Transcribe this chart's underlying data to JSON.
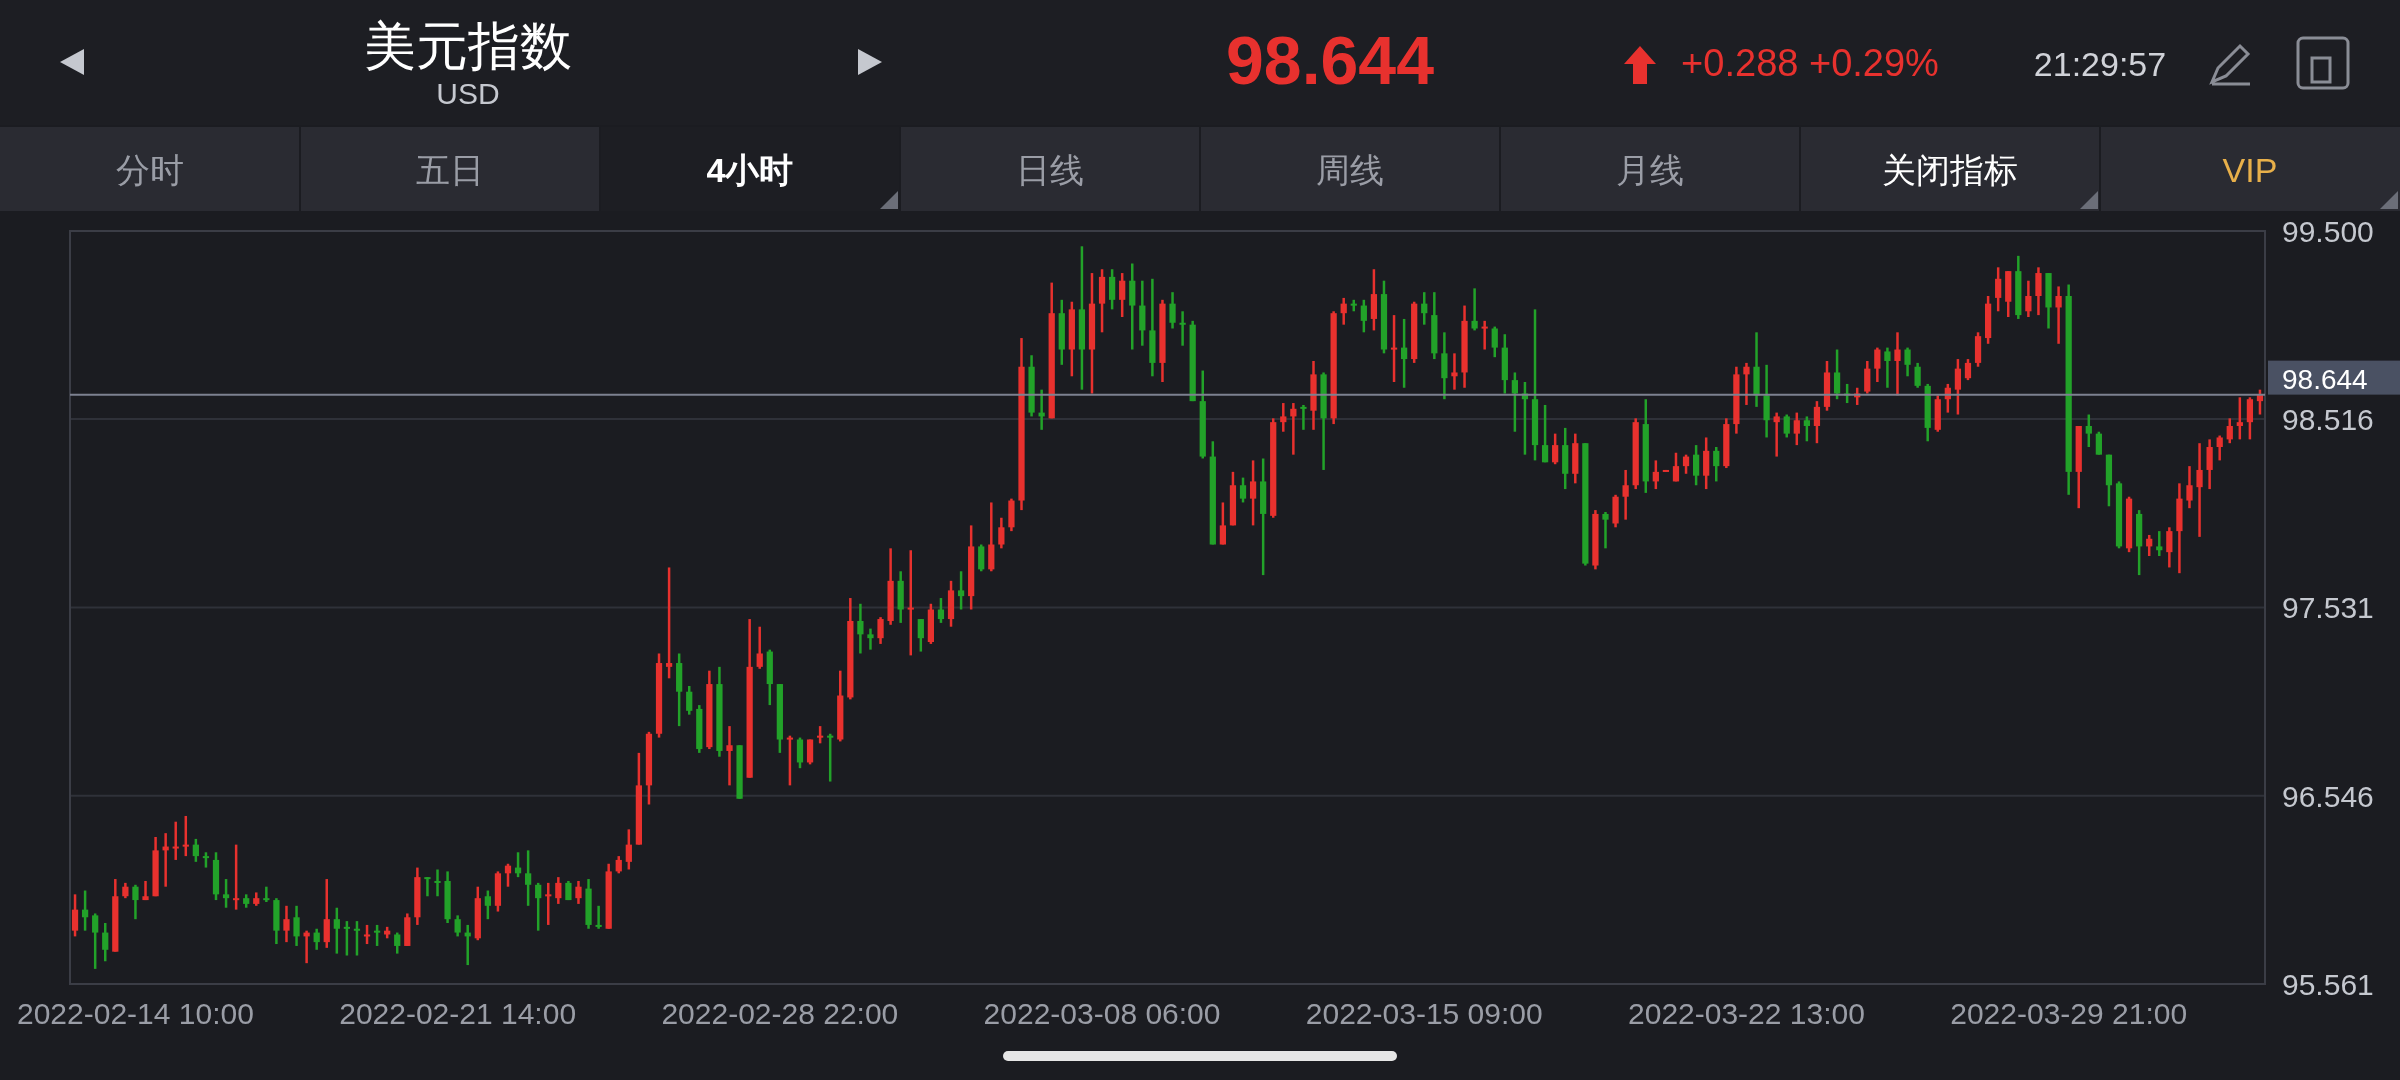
{
  "chart_data": {
    "type": "candlestick",
    "title": "美元指数",
    "subtitle": "USD",
    "annotations": [
      "98.644",
      "+0.288 +0.29%",
      "21:29:57",
      "分时",
      "五日",
      "4小时",
      "日线",
      "周线",
      "月线",
      "关闭指标",
      "VIP"
    ],
    "categories": [
      null,
      null,
      null,
      null,
      null,
      null,
      "2022-02-14 10:00",
      null,
      null,
      null,
      null,
      null,
      null,
      null,
      null,
      null,
      null,
      null,
      null,
      null,
      null,
      null,
      null,
      null,
      null,
      null,
      null,
      null,
      null,
      null,
      null,
      null,
      null,
      null,
      null,
      null,
      null,
      null,
      "2022-02-21 14:00",
      null,
      null,
      null,
      null,
      null,
      null,
      null,
      null,
      null,
      null,
      null,
      null,
      null,
      null,
      null,
      null,
      null,
      null,
      null,
      null,
      null,
      null,
      null,
      null,
      null,
      null,
      null,
      null,
      null,
      null,
      null,
      "2022-02-28 22:00",
      null,
      null,
      null,
      null,
      null,
      null,
      null,
      null,
      null,
      null,
      null,
      null,
      null,
      null,
      null,
      null,
      null,
      null,
      null,
      null,
      null,
      null,
      null,
      null,
      null,
      null,
      null,
      null,
      null,
      null,
      null,
      "2022-03-08 06:00",
      null,
      null,
      null,
      null,
      null,
      null,
      null,
      null,
      null,
      null,
      null,
      null,
      null,
      null,
      null,
      null,
      null,
      null,
      null,
      null,
      null,
      null,
      null,
      null,
      null,
      null,
      null,
      null,
      null,
      null,
      null,
      "2022-03-15 09:00",
      null,
      null,
      null,
      null,
      null,
      null,
      null,
      null,
      null,
      null,
      null,
      null,
      null,
      null,
      null,
      null,
      null,
      null,
      null,
      null,
      null,
      null,
      null,
      null,
      null,
      null,
      null,
      null,
      null,
      null,
      null,
      "2022-03-22 13:00",
      null,
      null,
      null,
      null,
      null,
      null,
      null,
      null,
      null,
      null,
      null,
      null,
      null,
      null,
      null,
      null,
      null,
      null,
      null,
      null,
      null,
      null,
      null,
      null,
      null,
      null,
      null,
      null,
      null,
      null,
      null,
      "2022-03-29 21:00",
      null,
      null,
      null,
      null,
      null,
      null,
      null,
      null,
      null,
      null,
      null,
      null,
      null,
      null,
      null,
      null,
      null,
      null,
      null
    ],
    "ohlc": [
      [
        95.84,
        96.03,
        95.81,
        95.95
      ],
      [
        95.95,
        96.05,
        95.84,
        95.91
      ],
      [
        95.92,
        95.93,
        95.64,
        95.83
      ],
      [
        95.83,
        95.88,
        95.68,
        95.74
      ],
      [
        95.73,
        96.11,
        95.73,
        96.02
      ],
      [
        96.02,
        96.09,
        96.01,
        96.07
      ],
      [
        96.07,
        96.08,
        95.9,
        96.0
      ],
      [
        96.0,
        96.1,
        96.0,
        96.02
      ],
      [
        96.02,
        96.33,
        96.02,
        96.26
      ],
      [
        96.26,
        96.35,
        96.07,
        96.28
      ],
      [
        96.27,
        96.41,
        96.21,
        96.28
      ],
      [
        96.28,
        96.44,
        96.23,
        96.29
      ],
      [
        96.29,
        96.32,
        96.2,
        96.23
      ],
      [
        96.23,
        96.25,
        96.17,
        96.22
      ],
      [
        96.21,
        96.25,
        96.0,
        96.03
      ],
      [
        96.03,
        96.11,
        95.96,
        96.01
      ],
      [
        96.0,
        96.29,
        95.95,
        96.01
      ],
      [
        96.01,
        96.03,
        95.96,
        95.98
      ],
      [
        95.98,
        96.04,
        95.97,
        96.01
      ],
      [
        96.01,
        96.07,
        95.99,
        96.0
      ],
      [
        96.0,
        96.01,
        95.77,
        95.84
      ],
      [
        95.84,
        95.97,
        95.78,
        95.9
      ],
      [
        95.91,
        95.97,
        95.76,
        95.81
      ],
      [
        95.81,
        95.84,
        95.67,
        95.83
      ],
      [
        95.83,
        95.85,
        95.74,
        95.78
      ],
      [
        95.78,
        96.11,
        95.75,
        95.9
      ],
      [
        95.9,
        95.96,
        95.72,
        95.85
      ],
      [
        95.86,
        95.89,
        95.71,
        95.85
      ],
      [
        95.85,
        95.89,
        95.71,
        95.84
      ],
      [
        95.81,
        95.87,
        95.77,
        95.82
      ],
      [
        95.84,
        95.87,
        95.76,
        95.83
      ],
      [
        95.82,
        95.86,
        95.8,
        95.84
      ],
      [
        95.82,
        95.83,
        95.72,
        95.76
      ],
      [
        95.76,
        95.93,
        95.76,
        95.91
      ],
      [
        95.91,
        96.17,
        95.87,
        96.12
      ],
      [
        96.12,
        96.12,
        96.02,
        96.11
      ],
      [
        96.1,
        96.16,
        96.02,
        96.1
      ],
      [
        96.1,
        96.15,
        95.88,
        95.9
      ],
      [
        95.9,
        95.92,
        95.81,
        95.83
      ],
      [
        95.83,
        95.87,
        95.66,
        95.81
      ],
      [
        95.8,
        96.07,
        95.79,
        96.01
      ],
      [
        96.02,
        96.05,
        95.9,
        95.97
      ],
      [
        95.97,
        96.15,
        95.94,
        96.14
      ],
      [
        96.14,
        96.19,
        96.07,
        96.18
      ],
      [
        96.17,
        96.25,
        96.12,
        96.14
      ],
      [
        96.14,
        96.26,
        95.97,
        96.08
      ],
      [
        96.08,
        96.09,
        95.84,
        96.01
      ],
      [
        96.02,
        96.09,
        95.87,
        96.03
      ],
      [
        96.01,
        96.12,
        95.98,
        96.09
      ],
      [
        96.09,
        96.1,
        96.0,
        96.0
      ],
      [
        96.01,
        96.1,
        95.98,
        96.07
      ],
      [
        96.06,
        96.11,
        95.85,
        95.87
      ],
      [
        95.87,
        95.97,
        95.85,
        95.86
      ],
      [
        95.85,
        96.19,
        95.85,
        96.15
      ],
      [
        96.15,
        96.23,
        96.14,
        96.21
      ],
      [
        96.2,
        96.37,
        96.16,
        96.29
      ],
      [
        96.29,
        96.77,
        96.29,
        96.6
      ],
      [
        96.6,
        96.88,
        96.5,
        96.87
      ],
      [
        96.87,
        97.29,
        96.85,
        97.24
      ],
      [
        97.22,
        97.74,
        97.16,
        97.24
      ],
      [
        97.24,
        97.29,
        96.91,
        97.09
      ],
      [
        97.09,
        97.12,
        96.97,
        96.99
      ],
      [
        97.0,
        97.02,
        96.77,
        96.79
      ],
      [
        96.8,
        97.2,
        96.79,
        97.13
      ],
      [
        97.13,
        97.22,
        96.75,
        96.78
      ],
      [
        96.78,
        96.91,
        96.6,
        96.81
      ],
      [
        96.81,
        96.81,
        96.53,
        96.53
      ],
      [
        96.64,
        97.47,
        96.64,
        97.22
      ],
      [
        97.22,
        97.43,
        97.21,
        97.29
      ],
      [
        97.3,
        97.31,
        97.02,
        97.13
      ],
      [
        97.13,
        97.13,
        96.77,
        96.84
      ],
      [
        96.84,
        96.86,
        96.6,
        96.85
      ],
      [
        96.84,
        96.85,
        96.69,
        96.72
      ],
      [
        96.72,
        96.84,
        96.71,
        96.84
      ],
      [
        96.85,
        96.91,
        96.82,
        96.86
      ],
      [
        96.86,
        96.87,
        96.62,
        96.85
      ],
      [
        96.84,
        97.2,
        96.83,
        97.07
      ],
      [
        97.06,
        97.58,
        97.05,
        97.46
      ],
      [
        97.46,
        97.55,
        97.29,
        97.39
      ],
      [
        97.39,
        97.42,
        97.31,
        97.37
      ],
      [
        97.37,
        97.48,
        97.34,
        97.47
      ],
      [
        97.46,
        97.84,
        97.44,
        97.67
      ],
      [
        97.67,
        97.72,
        97.45,
        97.52
      ],
      [
        97.52,
        97.83,
        97.28,
        97.53
      ],
      [
        97.47,
        97.47,
        97.3,
        97.37
      ],
      [
        97.35,
        97.55,
        97.34,
        97.52
      ],
      [
        97.52,
        97.58,
        97.45,
        97.47
      ],
      [
        97.47,
        97.67,
        97.43,
        97.62
      ],
      [
        97.62,
        97.72,
        97.52,
        97.59
      ],
      [
        97.59,
        97.96,
        97.52,
        97.85
      ],
      [
        97.85,
        97.86,
        97.72,
        97.73
      ],
      [
        97.73,
        98.08,
        97.72,
        97.86
      ],
      [
        97.86,
        98.0,
        97.84,
        97.95
      ],
      [
        97.95,
        98.1,
        97.93,
        98.09
      ],
      [
        98.09,
        98.94,
        98.04,
        98.79
      ],
      [
        98.79,
        98.85,
        98.53,
        98.55
      ],
      [
        98.55,
        98.67,
        98.46,
        98.53
      ],
      [
        98.52,
        99.23,
        98.52,
        99.07
      ],
      [
        99.07,
        99.14,
        98.8,
        98.88
      ],
      [
        98.88,
        99.13,
        98.74,
        99.09
      ],
      [
        99.09,
        99.42,
        98.67,
        98.88
      ],
      [
        98.88,
        99.28,
        98.65,
        99.12
      ],
      [
        99.12,
        99.3,
        98.97,
        99.26
      ],
      [
        99.26,
        99.3,
        99.09,
        99.14
      ],
      [
        99.14,
        99.28,
        99.05,
        99.24
      ],
      [
        99.24,
        99.33,
        98.88,
        99.11
      ],
      [
        99.11,
        99.24,
        98.9,
        98.98
      ],
      [
        98.98,
        99.25,
        98.74,
        98.81
      ],
      [
        98.81,
        99.14,
        98.71,
        99.12
      ],
      [
        99.12,
        99.18,
        98.99,
        99.02
      ],
      [
        99.02,
        99.08,
        98.9,
        99.01
      ],
      [
        99.01,
        99.03,
        98.61,
        98.61
      ],
      [
        98.61,
        98.77,
        98.31,
        98.32
      ],
      [
        98.32,
        98.4,
        97.86,
        97.86
      ],
      [
        97.86,
        98.08,
        97.86,
        97.96
      ],
      [
        97.96,
        98.24,
        97.96,
        98.17
      ],
      [
        98.17,
        98.21,
        98.08,
        98.1
      ],
      [
        98.1,
        98.3,
        97.96,
        98.19
      ],
      [
        98.19,
        98.31,
        97.7,
        98.02
      ],
      [
        98.01,
        98.52,
        98.0,
        98.5
      ],
      [
        98.5,
        98.6,
        98.45,
        98.53
      ],
      [
        98.53,
        98.6,
        98.33,
        98.57
      ],
      [
        98.58,
        98.59,
        98.46,
        98.57
      ],
      [
        98.56,
        98.82,
        98.46,
        98.75
      ],
      [
        98.75,
        98.76,
        98.25,
        98.52
      ],
      [
        98.52,
        99.08,
        98.49,
        99.07
      ],
      [
        99.07,
        99.15,
        99.01,
        99.12
      ],
      [
        99.12,
        99.14,
        99.08,
        99.11
      ],
      [
        99.11,
        99.14,
        98.97,
        99.03
      ],
      [
        99.04,
        99.3,
        98.98,
        99.17
      ],
      [
        99.17,
        99.24,
        98.86,
        98.88
      ],
      [
        98.88,
        99.06,
        98.71,
        98.89
      ],
      [
        98.89,
        99.04,
        98.68,
        98.83
      ],
      [
        98.83,
        99.13,
        98.81,
        99.12
      ],
      [
        99.12,
        99.18,
        99.01,
        99.07
      ],
      [
        99.06,
        99.18,
        98.83,
        98.86
      ],
      [
        98.86,
        98.97,
        98.62,
        98.73
      ],
      [
        98.74,
        98.86,
        98.67,
        98.76
      ],
      [
        98.76,
        99.11,
        98.68,
        99.03
      ],
      [
        99.03,
        99.2,
        98.98,
        98.99
      ],
      [
        98.99,
        99.03,
        98.88,
        99.0
      ],
      [
        98.99,
        99.0,
        98.84,
        98.89
      ],
      [
        98.89,
        98.96,
        98.65,
        98.72
      ],
      [
        98.72,
        98.76,
        98.45,
        98.65
      ],
      [
        98.65,
        98.71,
        98.33,
        98.62
      ],
      [
        98.62,
        99.09,
        98.3,
        98.38
      ],
      [
        98.38,
        98.59,
        98.29,
        98.29
      ],
      [
        98.29,
        98.44,
        98.28,
        98.38
      ],
      [
        98.38,
        98.47,
        98.15,
        98.23
      ],
      [
        98.23,
        98.44,
        98.18,
        98.39
      ],
      [
        98.39,
        98.39,
        97.75,
        97.76
      ],
      [
        97.75,
        98.04,
        97.73,
        98.02
      ],
      [
        98.02,
        98.03,
        97.84,
        97.99
      ],
      [
        97.97,
        98.12,
        97.95,
        98.11
      ],
      [
        98.11,
        98.25,
        97.99,
        98.17
      ],
      [
        98.17,
        98.52,
        98.15,
        98.5
      ],
      [
        98.49,
        98.62,
        98.13,
        98.19
      ],
      [
        98.19,
        98.3,
        98.15,
        98.24
      ],
      [
        98.24,
        98.25,
        98.24,
        98.25
      ],
      [
        98.19,
        98.34,
        98.19,
        98.27
      ],
      [
        98.27,
        98.33,
        98.23,
        98.32
      ],
      [
        98.33,
        98.38,
        98.17,
        98.22
      ],
      [
        98.22,
        98.42,
        98.15,
        98.35
      ],
      [
        98.35,
        98.37,
        98.19,
        98.27
      ],
      [
        98.27,
        98.52,
        98.26,
        98.49
      ],
      [
        98.49,
        98.79,
        98.44,
        98.75
      ],
      [
        98.75,
        98.81,
        98.59,
        98.79
      ],
      [
        98.79,
        98.97,
        98.58,
        98.64
      ],
      [
        98.64,
        98.8,
        98.42,
        98.51
      ],
      [
        98.5,
        98.55,
        98.32,
        98.53
      ],
      [
        98.53,
        98.54,
        98.42,
        98.44
      ],
      [
        98.44,
        98.55,
        98.38,
        98.51
      ],
      [
        98.51,
        98.53,
        98.4,
        98.48
      ],
      [
        98.48,
        98.61,
        98.39,
        98.58
      ],
      [
        98.58,
        98.82,
        98.56,
        98.76
      ],
      [
        98.76,
        98.88,
        98.62,
        98.65
      ],
      [
        98.65,
        98.7,
        98.6,
        98.64
      ],
      [
        98.63,
        98.68,
        98.59,
        98.65
      ],
      [
        98.66,
        98.82,
        98.65,
        98.78
      ],
      [
        98.78,
        98.89,
        98.71,
        98.88
      ],
      [
        98.87,
        98.89,
        98.68,
        98.82
      ],
      [
        98.82,
        98.97,
        98.64,
        98.88
      ],
      [
        98.88,
        98.89,
        98.74,
        98.8
      ],
      [
        98.79,
        98.81,
        98.68,
        98.69
      ],
      [
        98.69,
        98.7,
        98.4,
        98.47
      ],
      [
        98.46,
        98.64,
        98.45,
        98.62
      ],
      [
        98.62,
        98.7,
        98.55,
        98.68
      ],
      [
        98.67,
        98.83,
        98.54,
        98.78
      ],
      [
        98.73,
        98.83,
        98.72,
        98.81
      ],
      [
        98.81,
        98.97,
        98.79,
        98.95
      ],
      [
        98.94,
        99.16,
        98.91,
        99.12
      ],
      [
        99.15,
        99.31,
        99.08,
        99.25
      ],
      [
        99.13,
        99.29,
        99.05,
        99.29
      ],
      [
        99.29,
        99.37,
        99.04,
        99.06
      ],
      [
        99.08,
        99.24,
        99.05,
        99.16
      ],
      [
        99.16,
        99.31,
        99.06,
        99.28
      ],
      [
        99.28,
        99.28,
        98.99,
        99.1
      ],
      [
        99.1,
        99.21,
        98.91,
        99.16
      ],
      [
        99.16,
        99.22,
        98.12,
        98.24
      ],
      [
        98.24,
        98.48,
        98.05,
        98.48
      ],
      [
        98.48,
        98.54,
        98.37,
        98.44
      ],
      [
        98.44,
        98.45,
        98.33,
        98.33
      ],
      [
        98.33,
        98.33,
        98.06,
        98.17
      ],
      [
        98.18,
        98.19,
        97.84,
        97.85
      ],
      [
        97.84,
        98.11,
        97.82,
        98.1
      ],
      [
        98.02,
        98.04,
        97.7,
        97.85
      ],
      [
        97.85,
        97.91,
        97.8,
        97.89
      ],
      [
        97.85,
        97.93,
        97.8,
        97.83
      ],
      [
        97.82,
        97.95,
        97.74,
        97.93
      ],
      [
        97.93,
        98.18,
        97.71,
        98.1
      ],
      [
        98.09,
        98.27,
        98.05,
        98.17
      ],
      [
        98.16,
        98.39,
        97.9,
        98.25
      ],
      [
        98.25,
        98.41,
        98.15,
        98.37
      ],
      [
        98.37,
        98.43,
        98.3,
        98.42
      ],
      [
        98.41,
        98.52,
        98.39,
        98.48
      ],
      [
        98.48,
        98.63,
        98.41,
        98.5
      ],
      [
        98.5,
        98.63,
        98.41,
        98.62
      ],
      [
        98.61,
        98.67,
        98.54,
        98.644
      ]
    ],
    "colors": [
      "#e8312e",
      "#22a229",
      "#22a229",
      "#22a229",
      "#e8312e",
      "#e8312e",
      "#22a229",
      "#e8312e",
      "#e8312e",
      "#e8312e",
      "#e8312e",
      "#e8312e",
      "#22a229",
      "#22a229",
      "#22a229",
      "#22a229",
      "#e8312e",
      "#22a229",
      "#e8312e",
      "#22a229",
      "#22a229",
      "#e8312e",
      "#22a229",
      "#e8312e",
      "#22a229",
      "#e8312e",
      "#22a229",
      "#22a229",
      "#22a229",
      "#e8312e",
      "#22a229",
      "#e8312e",
      "#22a229",
      "#e8312e",
      "#e8312e",
      "#22a229",
      "#22a229",
      "#22a229",
      "#22a229",
      "#22a229",
      "#e8312e",
      "#22a229",
      "#e8312e",
      "#e8312e",
      "#22a229",
      "#22a229",
      "#22a229",
      "#e8312e",
      "#e8312e",
      "#22a229",
      "#e8312e",
      "#22a229",
      "#22a229",
      "#e8312e",
      "#e8312e",
      "#e8312e",
      "#e8312e",
      "#e8312e",
      "#e8312e",
      "#e8312e",
      "#22a229",
      "#22a229",
      "#22a229",
      "#e8312e",
      "#22a229",
      "#e8312e",
      "#22a229",
      "#e8312e",
      "#e8312e",
      "#22a229",
      "#22a229",
      "#e8312e",
      "#22a229",
      "#e8312e",
      "#e8312e",
      "#22a229",
      "#e8312e",
      "#e8312e",
      "#22a229",
      "#22a229",
      "#e8312e",
      "#e8312e",
      "#22a229",
      "#e8312e",
      "#22a229",
      "#e8312e",
      "#22a229",
      "#e8312e",
      "#22a229",
      "#e8312e",
      "#22a229",
      "#e8312e",
      "#e8312e",
      "#e8312e",
      "#e8312e",
      "#22a229",
      "#22a229",
      "#e8312e",
      "#22a229",
      "#e8312e",
      "#22a229",
      "#e8312e",
      "#e8312e",
      "#22a229",
      "#e8312e",
      "#22a229",
      "#22a229",
      "#22a229",
      "#e8312e",
      "#22a229",
      "#22a229",
      "#22a229",
      "#22a229",
      "#22a229",
      "#e8312e",
      "#e8312e",
      "#22a229",
      "#e8312e",
      "#22a229",
      "#e8312e",
      "#e8312e",
      "#e8312e",
      "#22a229",
      "#e8312e",
      "#22a229",
      "#e8312e",
      "#e8312e",
      "#22a229",
      "#22a229",
      "#e8312e",
      "#22a229",
      "#e8312e",
      "#22a229",
      "#e8312e",
      "#22a229",
      "#22a229",
      "#22a229",
      "#e8312e",
      "#e8312e",
      "#22a229",
      "#e8312e",
      "#22a229",
      "#22a229",
      "#22a229",
      "#22a229",
      "#22a229",
      "#22a229",
      "#e8312e",
      "#22a229",
      "#e8312e",
      "#22a229",
      "#e8312e",
      "#22a229",
      "#e8312e",
      "#e8312e",
      "#e8312e",
      "#22a229",
      "#e8312e",
      "#e8312e",
      "#e8312e",
      "#e8312e",
      "#22a229",
      "#e8312e",
      "#22a229",
      "#e8312e",
      "#e8312e",
      "#e8312e",
      "#22a229",
      "#22a229",
      "#e8312e",
      "#22a229",
      "#e8312e",
      "#22a229",
      "#e8312e",
      "#e8312e",
      "#22a229",
      "#22a229",
      "#e8312e",
      "#e8312e",
      "#e8312e",
      "#22a229",
      "#e8312e",
      "#22a229",
      "#22a229",
      "#22a229",
      "#e8312e",
      "#e8312e",
      "#e8312e",
      "#e8312e",
      "#e8312e",
      "#e8312e",
      "#e8312e",
      "#e8312e",
      "#22a229",
      "#e8312e",
      "#e8312e",
      "#22a229",
      "#e8312e",
      "#22a229",
      "#e8312e",
      "#22a229",
      "#22a229",
      "#22a229",
      "#22a229",
      "#e8312e",
      "#22a229",
      "#e8312e",
      "#22a229",
      "#e8312e",
      "#e8312e",
      "#e8312e",
      "#e8312e",
      "#e8312e",
      "#e8312e",
      "#e8312e",
      "#e8312e",
      "#e8312e",
      "#e8312e"
    ],
    "ylim": [
      95.561,
      99.5
    ],
    "yticks": [
      95.561,
      96.546,
      97.531,
      98.516,
      {
        "value": 99.5,
        "label": "99.500"
      }
    ],
    "ref_lines": [
      {
        "axis": "y",
        "value": 98.644,
        "label": "98.644",
        "color": "#7d8190"
      }
    ],
    "grid": "y"
  }
}
